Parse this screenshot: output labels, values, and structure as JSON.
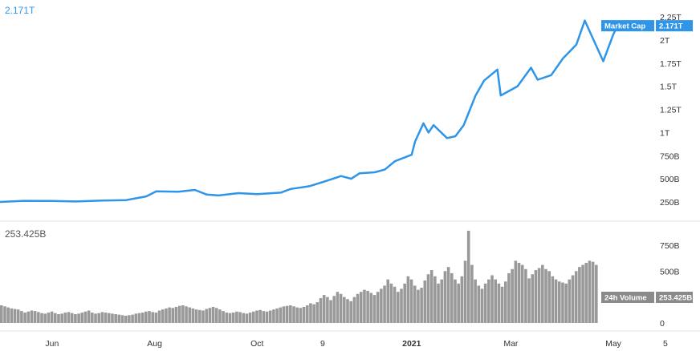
{
  "readouts": {
    "market_cap": "2.171T",
    "volume": "253.425B"
  },
  "colors": {
    "line": "#2e95e8",
    "volume": "#999999",
    "volume_badge": "#8a8a8a",
    "grid": "#e6e6e6"
  },
  "chart_data": [
    {
      "type": "line",
      "series": [
        {
          "name": "Market Cap",
          "last_value_label": "2.171T",
          "x": [
            "2020-05-01",
            "2020-05-15",
            "2020-06-01",
            "2020-06-15",
            "2020-07-01",
            "2020-07-15",
            "2020-07-27",
            "2020-08-02",
            "2020-08-15",
            "2020-08-25",
            "2020-09-01",
            "2020-09-08",
            "2020-09-20",
            "2020-10-01",
            "2020-10-15",
            "2020-10-21",
            "2020-11-01",
            "2020-11-10",
            "2020-11-20",
            "2020-11-26",
            "2020-12-01",
            "2020-12-10",
            "2020-12-16",
            "2020-12-22",
            "2021-01-01",
            "2021-01-03",
            "2021-01-08",
            "2021-01-11",
            "2021-01-14",
            "2021-01-22",
            "2021-01-27",
            "2021-02-01",
            "2021-02-08",
            "2021-02-13",
            "2021-02-21",
            "2021-02-23",
            "2021-02-28",
            "2021-03-05",
            "2021-03-13",
            "2021-03-17",
            "2021-03-25",
            "2021-04-01",
            "2021-04-09",
            "2021-04-14",
            "2021-04-18",
            "2021-04-25",
            "2021-05-01",
            "2021-05-04"
          ],
          "y": [
            250,
            262,
            260,
            255,
            265,
            270,
            310,
            365,
            360,
            380,
            330,
            320,
            345,
            335,
            350,
            390,
            420,
            470,
            530,
            500,
            560,
            570,
            600,
            690,
            760,
            900,
            1100,
            1000,
            1080,
            940,
            960,
            1080,
            1400,
            1560,
            1680,
            1400,
            1450,
            1500,
            1700,
            1570,
            1620,
            1800,
            1950,
            2210,
            2050,
            1770,
            2060,
            2171
          ]
        }
      ],
      "ylim": [
        0,
        2250
      ],
      "y_ticks": [
        "250B",
        "500B",
        "750B",
        "1T",
        "1.25T",
        "1.5T",
        "1.75T",
        "2T",
        "2.25T"
      ],
      "y_tick_values": [
        250,
        500,
        750,
        1000,
        1250,
        1500,
        1750,
        2000,
        2250
      ],
      "y_unit": "billions USD",
      "grid": false
    },
    {
      "type": "bar",
      "series": [
        {
          "name": "24h Volume",
          "last_value_label": "253.425B",
          "x_start": "2020-05-01",
          "interval_days": 2,
          "values": [
            170,
            160,
            150,
            140,
            135,
            130,
            115,
            100,
            110,
            120,
            115,
            105,
            95,
            90,
            100,
            110,
            95,
            85,
            90,
            100,
            105,
            95,
            85,
            90,
            100,
            110,
            120,
            100,
            90,
            95,
            105,
            100,
            95,
            90,
            85,
            80,
            75,
            70,
            75,
            80,
            90,
            95,
            100,
            110,
            115,
            105,
            100,
            120,
            130,
            140,
            150,
            145,
            155,
            165,
            170,
            160,
            150,
            140,
            130,
            125,
            120,
            135,
            145,
            155,
            145,
            130,
            115,
            100,
            95,
            100,
            110,
            105,
            95,
            90,
            100,
            110,
            120,
            125,
            115,
            110,
            120,
            130,
            140,
            150,
            160,
            165,
            170,
            160,
            150,
            145,
            155,
            170,
            190,
            180,
            200,
            240,
            270,
            250,
            220,
            260,
            300,
            280,
            250,
            230,
            210,
            250,
            280,
            300,
            320,
            310,
            290,
            270,
            300,
            330,
            360,
            420,
            380,
            350,
            300,
            330,
            380,
            450,
            420,
            360,
            320,
            340,
            410,
            470,
            510,
            450,
            380,
            420,
            500,
            540,
            480,
            420,
            380,
            450,
            600,
            890,
            560,
            420,
            360,
            330,
            380,
            420,
            460,
            420,
            380,
            350,
            400,
            480,
            520,
            600,
            580,
            560,
            520,
            430,
            470,
            510,
            530,
            560,
            520,
            500,
            450,
            420,
            400,
            390,
            380,
            420,
            460,
            500,
            540,
            560,
            580,
            600,
            590,
            560,
            520,
            490,
            460,
            420,
            380,
            360,
            340,
            380,
            420,
            460,
            480,
            500,
            520,
            540,
            560,
            600,
            590,
            560,
            530,
            500,
            470,
            450,
            430,
            420,
            440,
            460,
            480,
            253
          ]
        }
      ],
      "ylim": [
        0,
        880
      ],
      "y_ticks": [
        "0",
        "250B",
        "500B",
        "750B"
      ],
      "y_tick_values": [
        0,
        250,
        500,
        750
      ],
      "y_unit": "billions USD",
      "grid": false
    }
  ],
  "x_axis": {
    "start": "2020-05-01",
    "end": "2021-05-22",
    "ticks": [
      {
        "label": "Jun",
        "date": "2020-06-01",
        "bold": false
      },
      {
        "label": "Aug",
        "date": "2020-08-01",
        "bold": false
      },
      {
        "label": "Oct",
        "date": "2020-10-01",
        "bold": false
      },
      {
        "label": "9",
        "date": "2020-11-09",
        "bold": false
      },
      {
        "label": "2021",
        "date": "2021-01-01",
        "bold": true
      },
      {
        "label": "Mar",
        "date": "2021-03-01",
        "bold": false
      },
      {
        "label": "May",
        "date": "2021-05-01",
        "bold": false
      },
      {
        "label": "5",
        "date": "2021-06-01",
        "bold": false
      }
    ]
  }
}
